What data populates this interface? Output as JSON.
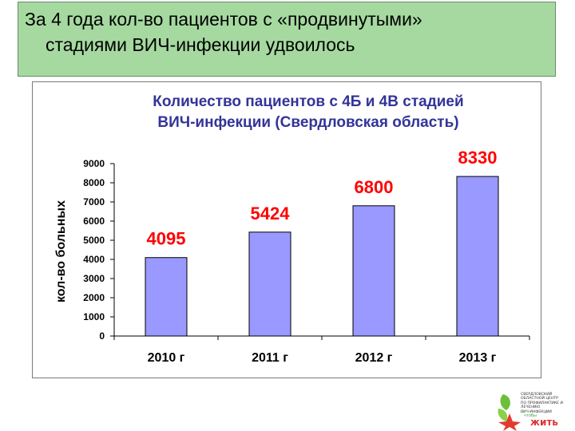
{
  "slide": {
    "title_line1": "За 4 года кол-во пациентов с «продвинутыми»",
    "title_line2": "стадиями ВИЧ-инфекции удвоилось"
  },
  "chart_data": {
    "type": "bar",
    "title_line1": "Количество пациентов с 4Б и 4В стадией",
    "title_line2": "ВИЧ-инфекции  (Свердловская область)",
    "xlabel": "",
    "ylabel": "кол-во больных",
    "categories": [
      "2010 г",
      "2011 г",
      "2012 г",
      "2013 г"
    ],
    "values": [
      4095,
      5424,
      6800,
      8330
    ],
    "data_labels": [
      "4095",
      "5424",
      "6800",
      "8330"
    ],
    "ylim": [
      0,
      9000
    ],
    "yticks": [
      0,
      1000,
      2000,
      3000,
      4000,
      5000,
      6000,
      7000,
      8000,
      9000
    ],
    "bar_color": "#9999ff",
    "label_color": "#ff0000",
    "title_color": "#333399",
    "grid": false,
    "legend": "none"
  },
  "logo": {
    "lines": [
      "СВЕРДЛОВСКИЙ",
      "ОБЛАСТНОЙ ЦЕНТР",
      "ПО ПРОФИЛАКТИКЕ И ЛЕЧЕНИЮ",
      "ВИЧ-ИНФЕКЦИИ"
    ],
    "small": "чтобы",
    "word": "жить"
  }
}
